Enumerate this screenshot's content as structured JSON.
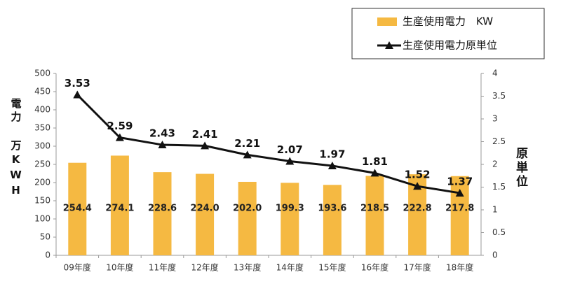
{
  "chart_data": {
    "type": "bar-line",
    "categories": [
      "09年度",
      "10年度",
      "11年度",
      "12年度",
      "13年度",
      "14年度",
      "15年度",
      "16年度",
      "17年度",
      "18年度"
    ],
    "series": [
      {
        "name": "生産使用電力　KW",
        "type": "bar",
        "color": "#f5b942",
        "values": [
          254.4,
          274.1,
          228.6,
          224.0,
          202.0,
          199.3,
          193.6,
          218.5,
          222.8,
          217.8
        ],
        "value_labels": [
          "254.4",
          "274.1",
          "228.6",
          "224.0",
          "202.0",
          "199.3",
          "193.6",
          "218.5",
          "222.8",
          "217.8"
        ]
      },
      {
        "name": "生産使用電力原単位",
        "type": "line",
        "axis": "y2",
        "color": "#111111",
        "values": [
          3.53,
          2.59,
          2.43,
          2.41,
          2.21,
          2.07,
          1.97,
          1.81,
          1.52,
          1.37
        ]
      }
    ],
    "y_label": "電力 万KWH",
    "y2_label": "原単位",
    "ylim": [
      0,
      500
    ],
    "yticks": [
      0,
      50,
      100,
      150,
      200,
      250,
      300,
      350,
      400,
      450,
      500
    ],
    "y2lim": [
      0,
      4
    ],
    "y2ticks": [
      0,
      0.5,
      1,
      1.5,
      2,
      2.5,
      3,
      3.5,
      4
    ],
    "legend": "top-right",
    "grid": false
  }
}
